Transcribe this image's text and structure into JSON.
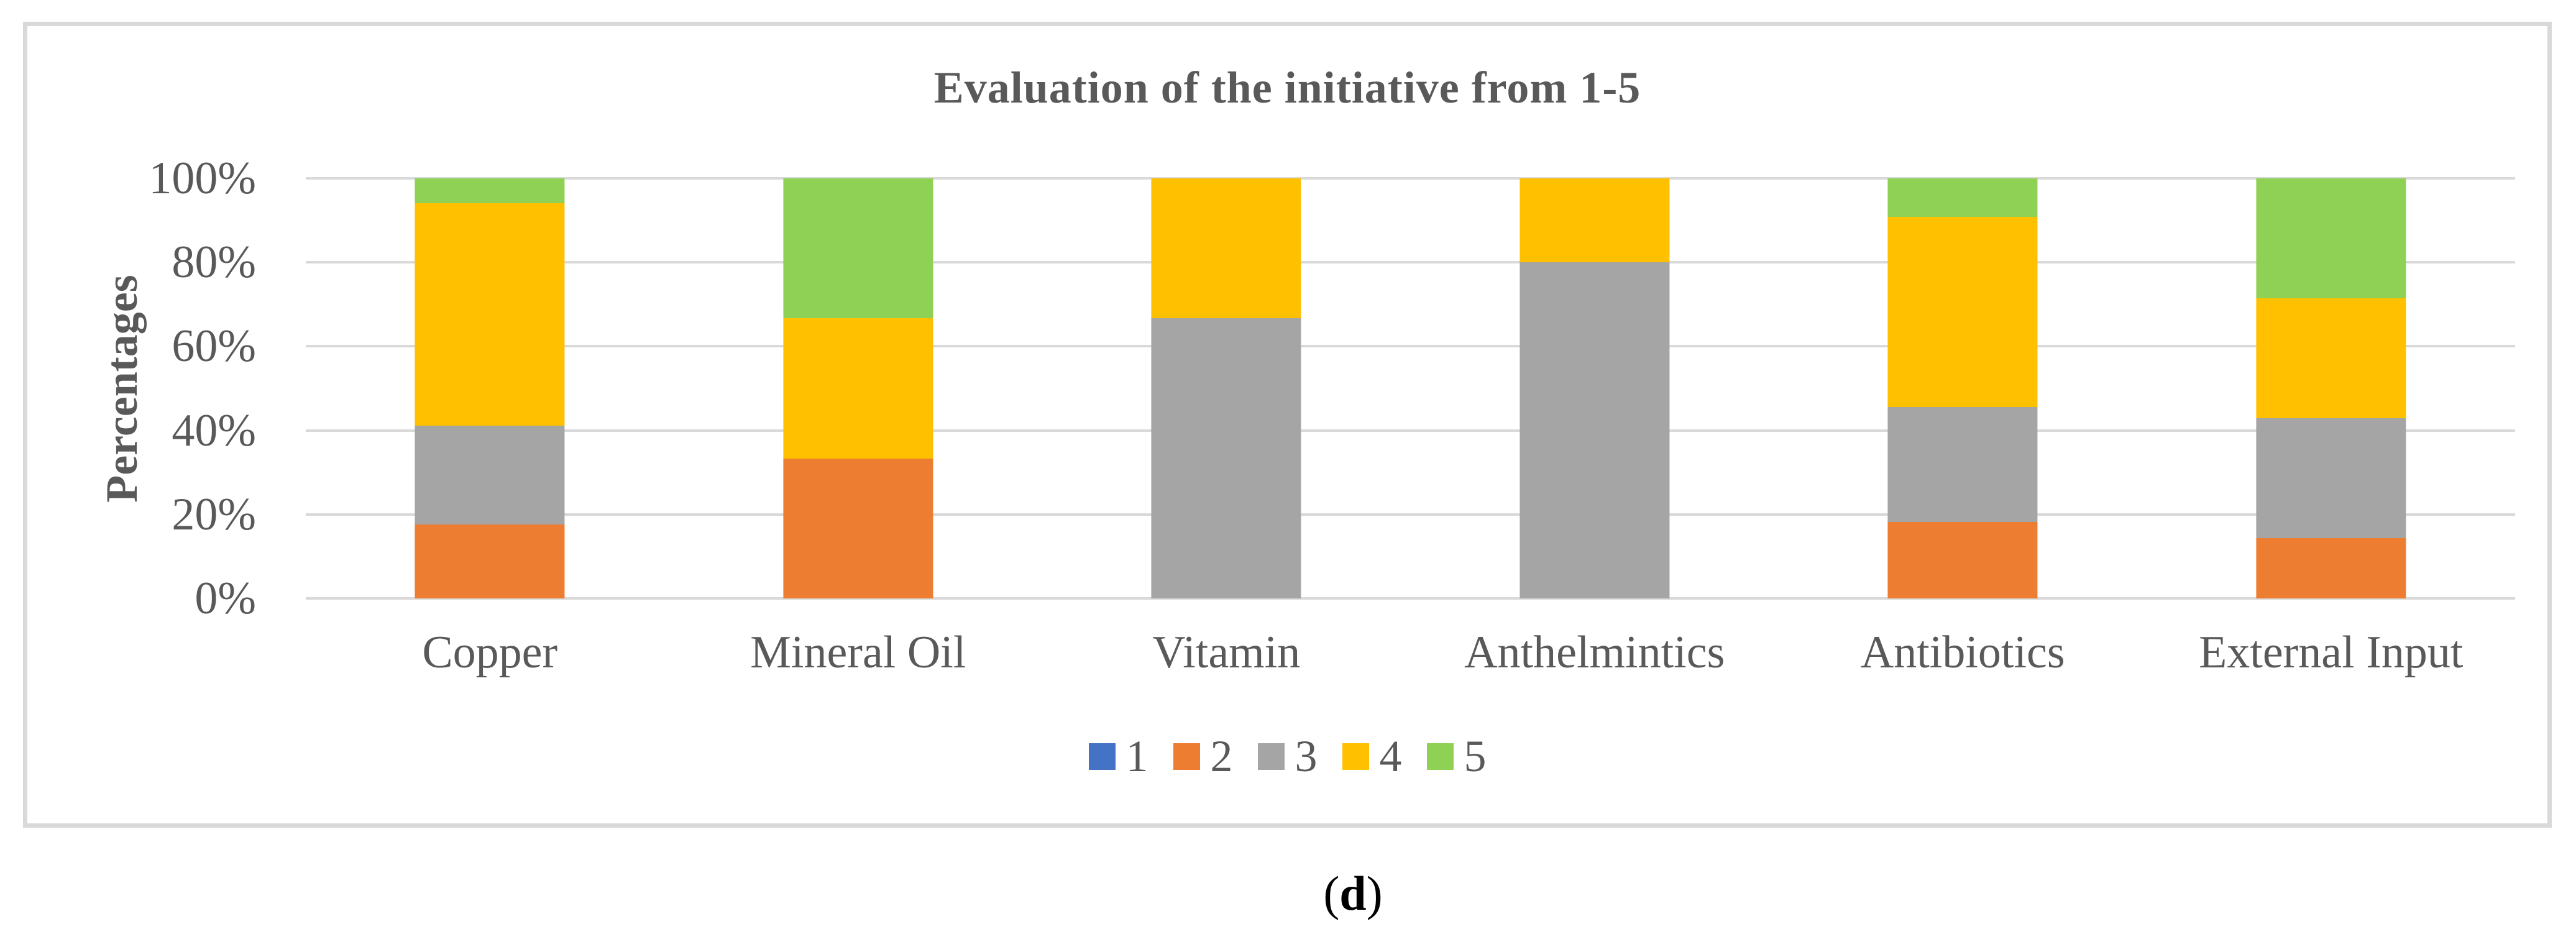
{
  "figure": {
    "caption": {
      "open": "(",
      "letter": "d",
      "close": ")"
    }
  },
  "chart": {
    "title": "Evaluation of the initiative from 1-5",
    "y_axis_label": "Percentages"
  },
  "style_colors": {
    "text": "#595959",
    "gridline": "#D9D9D9",
    "plot_border": "#D9D9D9",
    "background": "#FFFFFF",
    "caption_text": "#000000"
  },
  "chart_data": {
    "type": "bar",
    "stacked": true,
    "stacked_percent": true,
    "title": "Evaluation of the initiative from 1-5",
    "xlabel": "",
    "ylabel": "Percentages",
    "ylim": [
      0,
      100
    ],
    "y_ticks": [
      "0%",
      "20%",
      "40%",
      "60%",
      "80%",
      "100%"
    ],
    "grid": true,
    "legend_position": "bottom",
    "categories": [
      "Copper",
      "Mineral Oil",
      "Vitamin",
      "Anthelmintics",
      "Antibiotics",
      "External Input"
    ],
    "series": [
      {
        "name": "1",
        "color": "#4472C4",
        "values": [
          0,
          0,
          0,
          0,
          0,
          0
        ]
      },
      {
        "name": "2",
        "color": "#ED7D31",
        "values": [
          17.6,
          33.3,
          0,
          0,
          18.2,
          14.3
        ]
      },
      {
        "name": "3",
        "color": "#A5A5A5",
        "values": [
          23.5,
          0,
          66.7,
          80,
          27.3,
          28.6
        ]
      },
      {
        "name": "4",
        "color": "#FFC000",
        "values": [
          52.9,
          33.4,
          33.3,
          20,
          45.4,
          28.6
        ]
      },
      {
        "name": "5",
        "color": "#8ED154",
        "values": [
          5.9,
          33.3,
          0,
          0,
          9.1,
          28.5
        ]
      }
    ]
  }
}
